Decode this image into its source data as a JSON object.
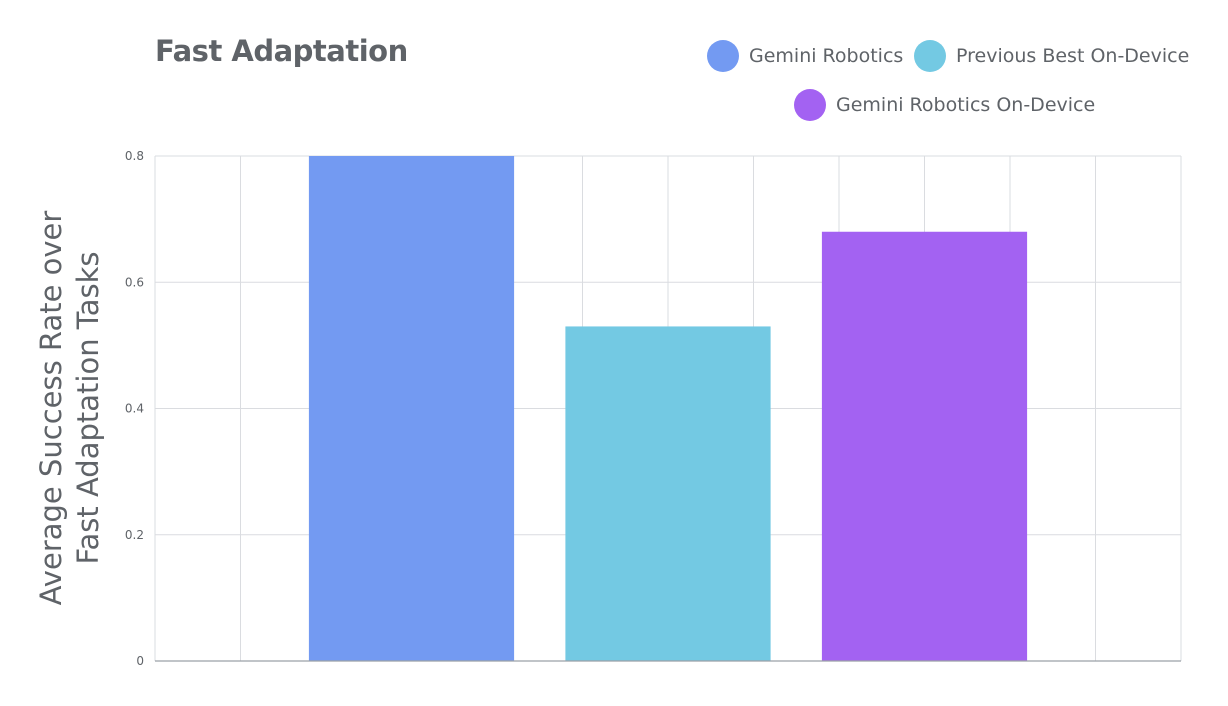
{
  "chart_data": {
    "type": "bar",
    "title": "Fast Adaptation",
    "ylabel_lines": [
      "Average Success Rate over",
      "Fast Adaptation Tasks"
    ],
    "xlabel": "",
    "categories": [
      "Gemini Robotics",
      "Previous Best On-Device",
      "Gemini Robotics On-Device"
    ],
    "values": [
      0.8,
      0.53,
      0.68
    ],
    "colors": [
      "#739af2",
      "#73c9e3",
      "#a362f2"
    ],
    "ylim": [
      0,
      0.8
    ],
    "yticks": [
      0,
      0.2,
      0.4,
      0.6,
      0.8
    ],
    "ytick_labels": [
      "0",
      "0.2",
      "0.4",
      "0.6",
      "0.8"
    ],
    "grid": true,
    "legend_position": "top-right"
  }
}
